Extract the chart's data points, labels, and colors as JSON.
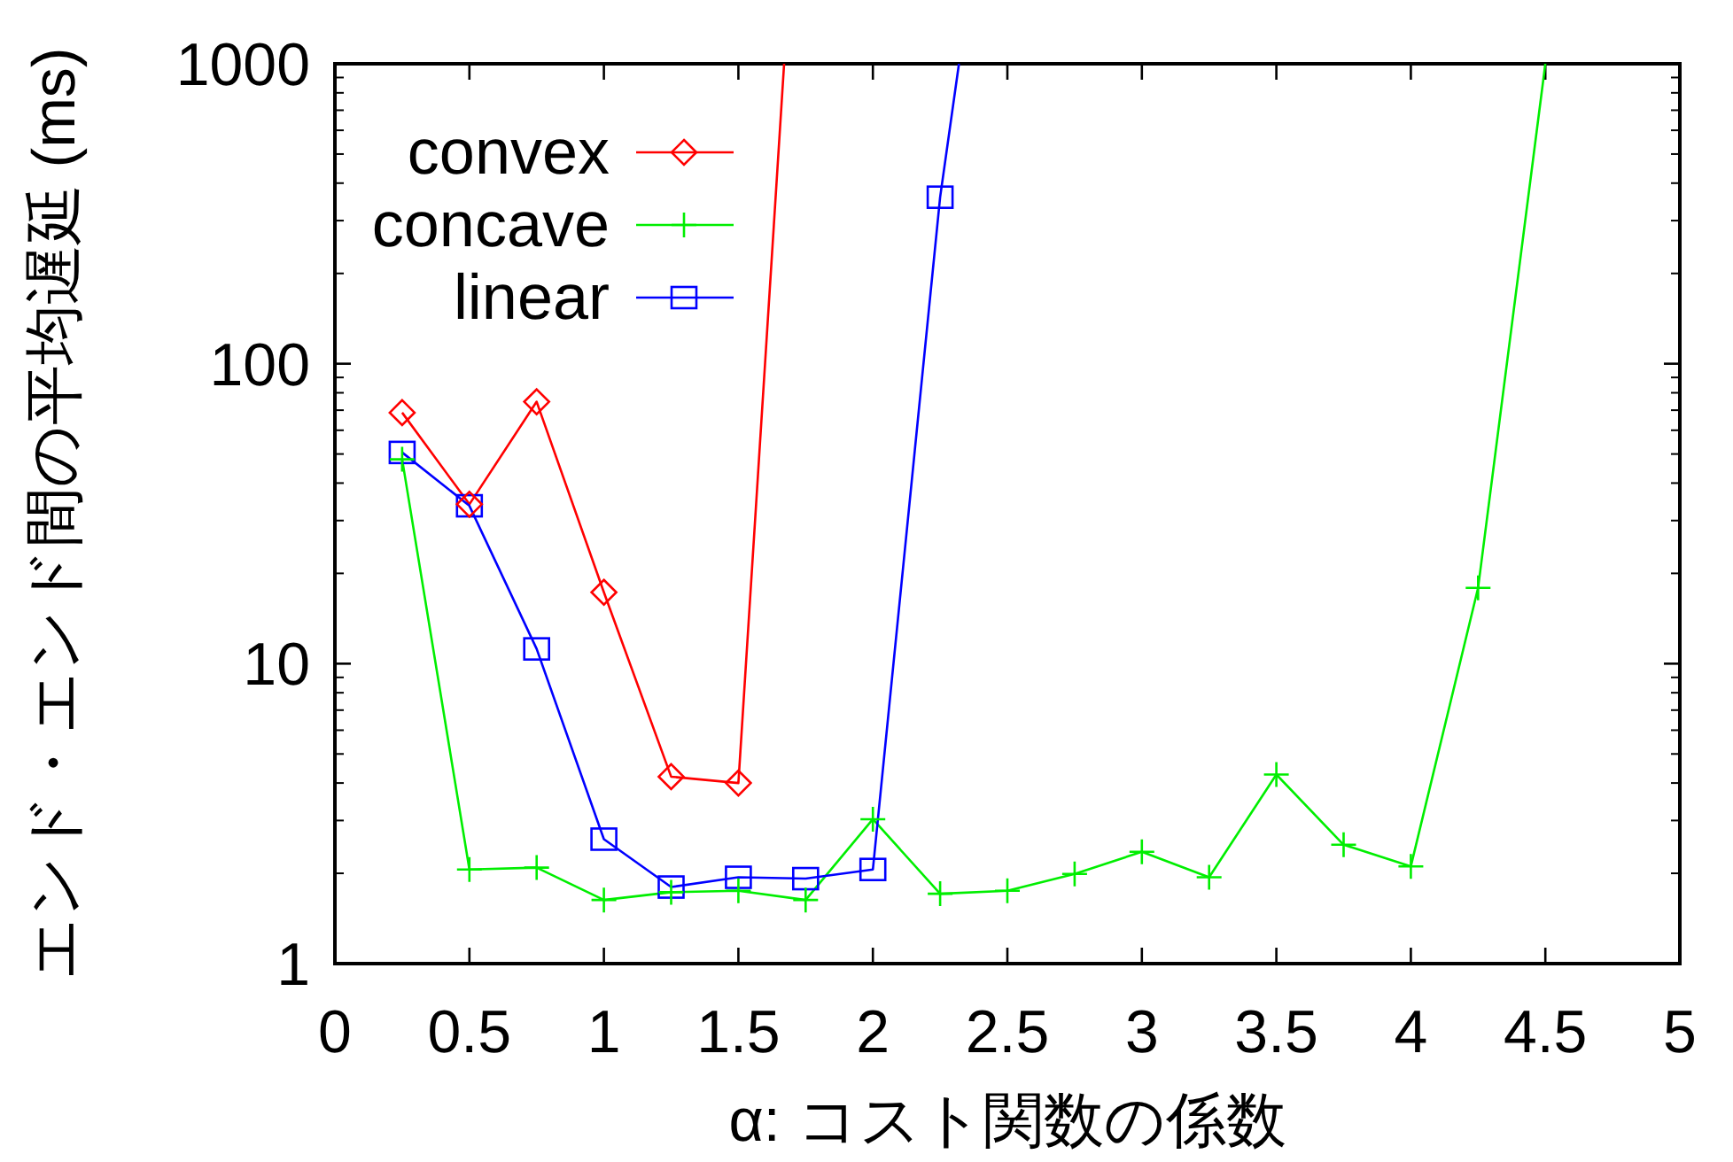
{
  "chart_data": {
    "type": "line",
    "xlabel": "α: コスト関数の係数",
    "ylabel": "エンド・エンド間の平均遅延 (ms)",
    "log": "y",
    "xlim": [
      0,
      5
    ],
    "ylim": [
      1,
      1000
    ],
    "xticks": [
      0,
      0.5,
      1,
      1.5,
      2,
      2.5,
      3,
      3.5,
      4,
      4.5,
      5
    ],
    "yticks": [
      1,
      10,
      100,
      1000
    ],
    "grid": false,
    "legend": "top left",
    "series": [
      {
        "name": "convex",
        "color": "#ff0000",
        "marker": "diamond",
        "x": [
          0.25,
          0.5,
          0.75,
          1,
          1.25,
          1.5,
          1.67
        ],
        "values": [
          68.7,
          34,
          74.7,
          17.3,
          4.2,
          4.0,
          1000
        ]
      },
      {
        "name": "concave",
        "color": "#00ee00",
        "marker": "cross",
        "x": [
          0.25,
          0.5,
          0.75,
          1,
          1.25,
          1.5,
          1.75,
          2,
          2.25,
          2.5,
          2.75,
          3,
          3.25,
          3.5,
          3.75,
          4,
          4.25,
          4.5
        ],
        "values": [
          48,
          2.06,
          2.09,
          1.63,
          1.73,
          1.75,
          1.63,
          3.03,
          1.71,
          1.75,
          1.99,
          2.36,
          1.94,
          4.27,
          2.49,
          2.11,
          17.9,
          1000
        ]
      },
      {
        "name": "linear",
        "color": "#0000ff",
        "marker": "square",
        "x": [
          0.25,
          0.5,
          0.75,
          1,
          1.25,
          1.5,
          1.75,
          2,
          2.25,
          2.32
        ],
        "values": [
          50.6,
          33.6,
          11.2,
          2.6,
          1.8,
          1.94,
          1.92,
          2.06,
          359,
          1000
        ]
      }
    ]
  }
}
